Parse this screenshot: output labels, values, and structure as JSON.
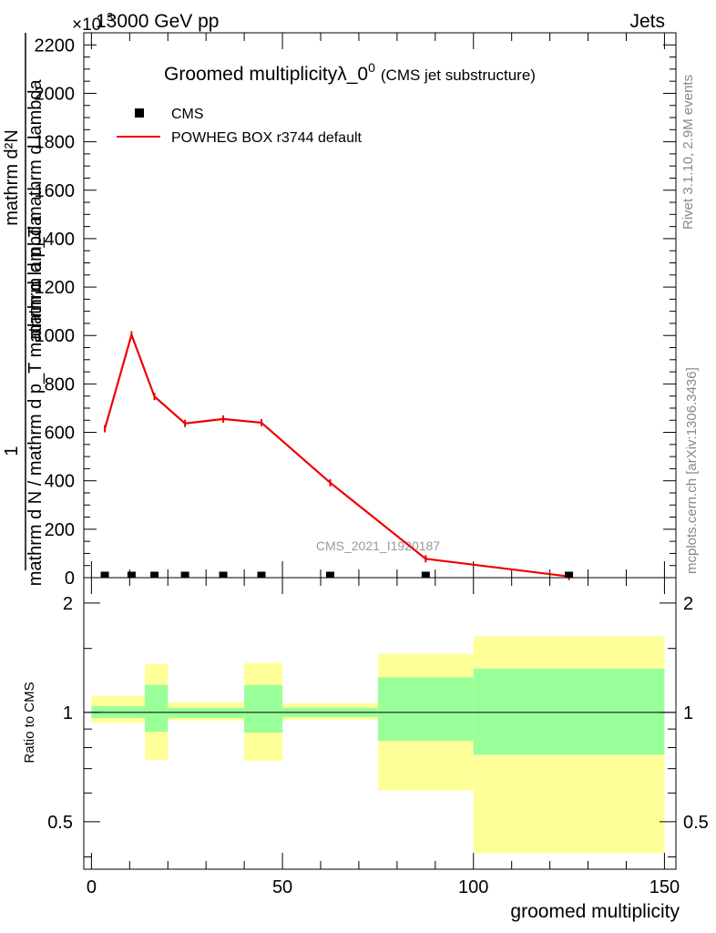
{
  "header": {
    "collision": "13000 GeV pp",
    "category": "Jets",
    "exponent": "×10",
    "exponent_power": "3"
  },
  "side_labels": {
    "rivet": "Rivet 3.1.10,  2.9M events",
    "mcplots": "mcplots.cern.ch [arXiv:1306.3436]"
  },
  "watermark": "CMS_2021_I1920187",
  "top_plot": {
    "title": "Groomed multiplicityλ_0",
    "title_sup": "0",
    "title_note": "(CMS jet substructure)",
    "ylabel_numerator": "mathrm d²N",
    "ylabel_one": "1",
    "ylabel_inner": "mathrm d p_T mathrm d lambda",
    "ylabel_denominator": "mathrm d N / mathrm d p_T mathrm d lambda",
    "legend": [
      {
        "label": "CMS",
        "kind": "marker",
        "color": "#000000"
      },
      {
        "label": "POWHEG BOX r3744 default",
        "kind": "line",
        "color": "#ee0000"
      }
    ]
  },
  "bottom_plot": {
    "ylabel": "Ratio to CMS",
    "xlabel": "groomed multiplicity"
  },
  "chart_data": [
    {
      "type": "line",
      "xlim": [
        -2,
        153
      ],
      "ylim": [
        0,
        2250
      ],
      "yticks": [
        0,
        200,
        400,
        600,
        800,
        1000,
        1200,
        1400,
        1600,
        1800,
        2000,
        2200
      ],
      "ytick_labels": [
        "0",
        "200",
        "400",
        "600",
        "800",
        "1000",
        "1200",
        "1400",
        "1600",
        "1800",
        "2000",
        "2200"
      ],
      "series": [
        {
          "name": "POWHEG BOX r3744 default",
          "color": "#ee0000",
          "x": [
            3.5,
            10.5,
            16.5,
            24.5,
            34.5,
            44.5,
            62.5,
            87.5,
            125
          ],
          "y": [
            615,
            1003,
            748,
            637,
            655,
            640,
            392,
            78,
            5
          ]
        },
        {
          "name": "CMS",
          "color": "#000000",
          "x": [
            3.5,
            10.5,
            16.5,
            24.5,
            34.5,
            44.5,
            62.5,
            87.5,
            125
          ],
          "y": [
            2,
            2,
            2,
            2,
            2,
            2,
            2,
            2,
            2
          ]
        }
      ]
    },
    {
      "type": "area",
      "xlim": [
        -2,
        153
      ],
      "ylim": [
        0.37,
        2.35
      ],
      "yscale": "log",
      "yticks": [
        0.5,
        1,
        2
      ],
      "ytick_labels": [
        "0.5",
        "1",
        "2"
      ],
      "xticks": [
        0,
        50,
        100,
        150
      ],
      "xtick_labels": [
        "0",
        "50",
        "100",
        "150"
      ],
      "reference_line": 1,
      "bins": [
        {
          "x0": 0,
          "x1": 7,
          "inner": [
            0.965,
            1.04
          ],
          "outer": [
            0.935,
            1.11
          ]
        },
        {
          "x0": 7,
          "x1": 14,
          "inner": [
            0.965,
            1.04
          ],
          "outer": [
            0.935,
            1.11
          ]
        },
        {
          "x0": 14,
          "x1": 20,
          "inner": [
            0.885,
            1.19
          ],
          "outer": [
            0.74,
            1.36
          ]
        },
        {
          "x0": 20,
          "x1": 40,
          "inner": [
            0.965,
            1.03
          ],
          "outer": [
            0.95,
            1.065
          ]
        },
        {
          "x0": 40,
          "x1": 50,
          "inner": [
            0.88,
            1.19
          ],
          "outer": [
            0.735,
            1.37
          ]
        },
        {
          "x0": 50,
          "x1": 75,
          "inner": [
            0.97,
            1.03
          ],
          "outer": [
            0.955,
            1.06
          ]
        },
        {
          "x0": 75,
          "x1": 100,
          "inner": [
            0.835,
            1.25
          ],
          "outer": [
            0.61,
            1.45
          ]
        },
        {
          "x0": 100,
          "x1": 150,
          "inner": [
            0.765,
            1.32
          ],
          "outer": [
            0.41,
            1.62
          ]
        }
      ]
    }
  ],
  "colors": {
    "inner_band": "#99ff99",
    "outer_band": "#ffff99",
    "model": "#ee0000",
    "data": "#000000",
    "watermark": "#999999"
  }
}
